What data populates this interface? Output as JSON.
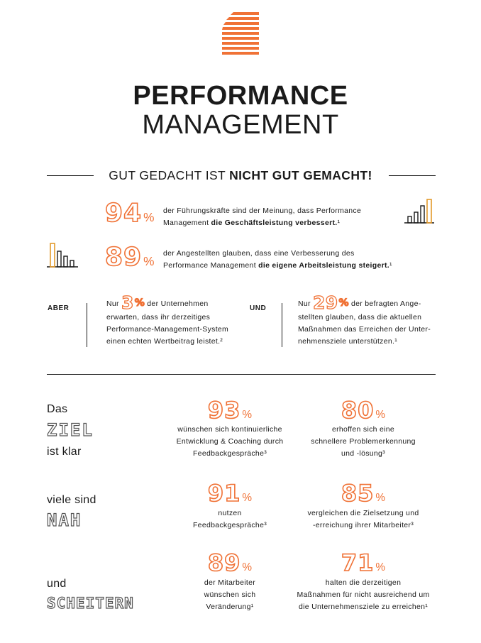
{
  "header": {
    "title_line1": "PERFORMANCE",
    "title_line2": "MANAGEMENT",
    "logo_icon": "striped-stack-logo-icon",
    "accent_color": "#f07236"
  },
  "subheading": {
    "normal": "GUT GEDACHT IST ",
    "bold": "NICHT GUT GEMACHT!"
  },
  "top_stats": [
    {
      "number": "94",
      "percent": "%",
      "text_normal_1": "der Führungskräfte sind der Meinung, dass Performance",
      "text_normal_2": "Management ",
      "text_bold": "die Geschäftsleistung verbessert.",
      "footnote": "¹",
      "icon": "bar-chart-icon"
    },
    {
      "number": "89",
      "percent": "%",
      "text_normal_1": "der Angestellten glauben, dass eine Verbesserung des",
      "text_normal_2": "Performance Management ",
      "text_bold": "die eigene Arbeitsleistung steigert.",
      "footnote": "¹",
      "icon": "bar-chart-icon"
    }
  ],
  "contrast": {
    "aber_label": "ABER",
    "und_label": "UND",
    "left": {
      "prefix": "Nur",
      "number": "3",
      "percent": "%",
      "line1_rest": "der Unternehmen",
      "line2": "erwarten, dass ihr derzeitiges",
      "line3": "Performance-Management-System",
      "line4": "einen echten Wertbeitrag leistet.²"
    },
    "right": {
      "prefix": "Nur",
      "number": "29",
      "percent": "%",
      "line1_rest": "der befragten Ange-",
      "line2": "stellten glauben, dass die aktuellen",
      "line3": "Maßnahmen das Erreichen der Unter-",
      "line4": "nehmensziele unterstützen.¹"
    }
  },
  "rows": [
    {
      "side_top": "Das",
      "side_outline": "ZIEL",
      "side_bottom": "ist klar",
      "stats": [
        {
          "number": "93",
          "percent": "%",
          "lines": [
            "wünschen sich kontinuierliche",
            "Entwicklung & Coaching durch",
            "Feedbackgespräche³"
          ]
        },
        {
          "number": "80",
          "percent": "%",
          "lines": [
            "erhoffen sich eine",
            "schnellere Problemerkennung",
            "und -lösung³"
          ]
        }
      ]
    },
    {
      "side_top": "viele sind",
      "side_outline": "NAH",
      "side_bottom": "",
      "stats": [
        {
          "number": "91",
          "percent": "%",
          "lines": [
            "nutzen",
            "Feedbackgespräche³"
          ]
        },
        {
          "number": "85",
          "percent": "%",
          "lines": [
            "vergleichen die Zielsetzung und",
            "-erreichung ihrer Mitarbeiter³"
          ]
        }
      ]
    },
    {
      "side_top": "und",
      "side_outline": "SCHEITERN",
      "side_bottom": "",
      "stats": [
        {
          "number": "89",
          "percent": "%",
          "lines": [
            "der Mitarbeiter",
            "wünschen sich",
            "Veränderung¹"
          ]
        },
        {
          "number": "71",
          "percent": "%",
          "lines": [
            "halten die derzeitigen",
            "Maßnahmen für nicht ausreichend um",
            "die Unternehmensziele zu erreichen¹"
          ]
        }
      ]
    }
  ]
}
